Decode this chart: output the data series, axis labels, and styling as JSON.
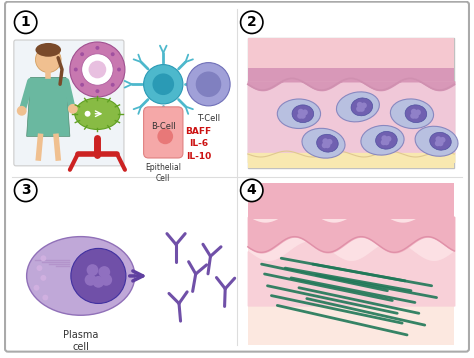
{
  "bg_color": "#ffffff",
  "panel1": {
    "number": "1",
    "bcell_color": "#4db8cc",
    "bcell_dark": "#2a9ab5",
    "tcell_color": "#8080c0",
    "tcell_light": "#a0a0d8",
    "epithelial_color": "#f5a8a8",
    "bcell_label": "B-Cell",
    "tcell_label": "T-Cell",
    "epithelial_label": "Epithelial\nCell",
    "cytokine_text": "BAFF\nIL-6\nIL-10",
    "cytokine_color": "#cc1111",
    "patient_gown": "#6ab8a0",
    "vessel_color": "#cc2222",
    "donut_outer": "#c870a8",
    "donut_inner": "#e8b8d8",
    "lymph_color": "#88bb44"
  },
  "panel2": {
    "number": "2",
    "skin_epidermis": "#f5c8d0",
    "skin_stratum": "#d898b8",
    "skin_dermis": "#f0c8d8",
    "skin_fat": "#f8e8b0",
    "wave_color": "#d090b0",
    "cell_body": "#b8c0e0",
    "cell_nucleus": "#7060b0",
    "cell_nucleolus": "#9080c8"
  },
  "panel3": {
    "number": "3",
    "plasma_outer": "#c0a8d8",
    "plasma_er": "#b090c8",
    "plasma_nucleus": "#7050a8",
    "arrow_color": "#6040a0",
    "antibody_color": "#7050a8",
    "label": "Plasma\ncell"
  },
  "panel4": {
    "number": "4",
    "skin_top": "#f0b0c0",
    "skin_mid": "#f8d0d8",
    "skin_wave": "#e090a8",
    "skin_fat": "#fce8e0",
    "amyloid_color": "#207858"
  }
}
